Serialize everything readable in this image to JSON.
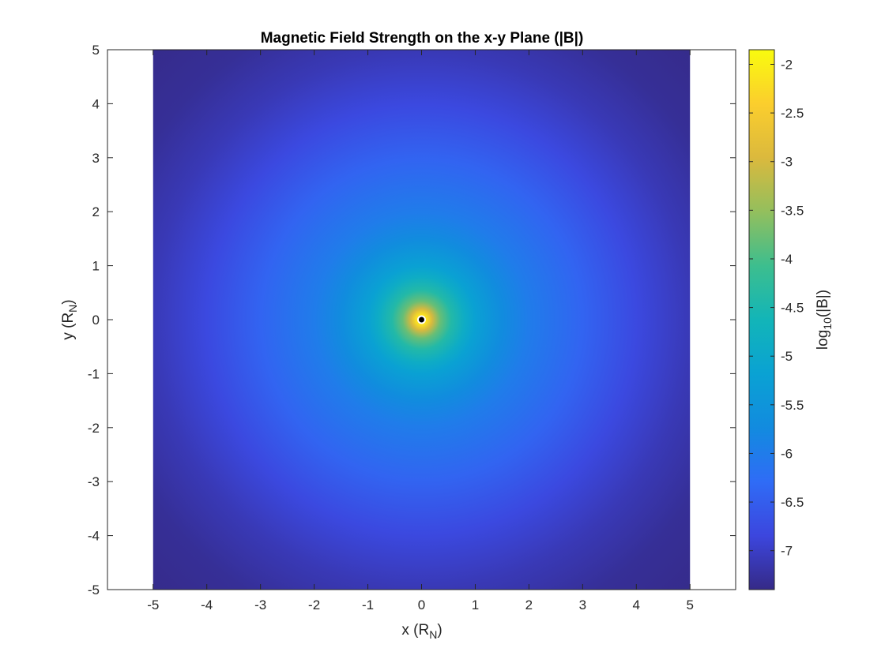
{
  "chart_data": {
    "type": "heatmap",
    "title": "Magnetic Field Strength on the x-y Plane (|B|)",
    "xlabel": {
      "main": "x (R",
      "sub": "N",
      "close": ")"
    },
    "ylabel": {
      "main": "y (R",
      "sub": "N",
      "close": ")"
    },
    "xlim": [
      -5.85,
      5.85
    ],
    "ylim": [
      -5,
      5
    ],
    "x_data_range": [
      -5,
      5
    ],
    "y_data_range": [
      -5,
      5
    ],
    "x_ticks": [
      -5,
      -4,
      -3,
      -2,
      -1,
      0,
      1,
      2,
      3,
      4,
      5
    ],
    "x_tick_labels": [
      "-5",
      "-4",
      "-3",
      "-2",
      "-1",
      "0",
      "1",
      "2",
      "3",
      "4",
      "5"
    ],
    "y_ticks": [
      5,
      4,
      3,
      2,
      1,
      0,
      -1,
      -2,
      -3,
      -4,
      -5
    ],
    "y_tick_labels": [
      "5",
      "4",
      "3",
      "2",
      "1",
      "0",
      "-1",
      "-2",
      "-3",
      "-4",
      "-5"
    ],
    "colorbar": {
      "label": {
        "pre": "log",
        "sub": "10",
        "post": "(|B|)"
      },
      "clim": [
        -7.4,
        -1.85
      ],
      "ticks": [
        -2,
        -2.5,
        -3,
        -3.5,
        -4,
        -4.5,
        -5,
        -5.5,
        -6,
        -6.5,
        -7
      ],
      "tick_labels": [
        "-2",
        "-2.5",
        "-3",
        "-3.5",
        "-4",
        "-4.5",
        "-5",
        "-5.5",
        "-6",
        "-6.5",
        "-7"
      ],
      "colormap": "parula"
    },
    "field_model": {
      "description_values": {
        "log10_B_at_r_0.1": -2.2,
        "log10_B_at_r_1": -5.2,
        "log10_B_at_r_5": -7.1
      }
    },
    "center_marker": {
      "x": 0,
      "y": 0,
      "color": "#000000",
      "ring_color": "#ffffff"
    },
    "grid": false
  }
}
